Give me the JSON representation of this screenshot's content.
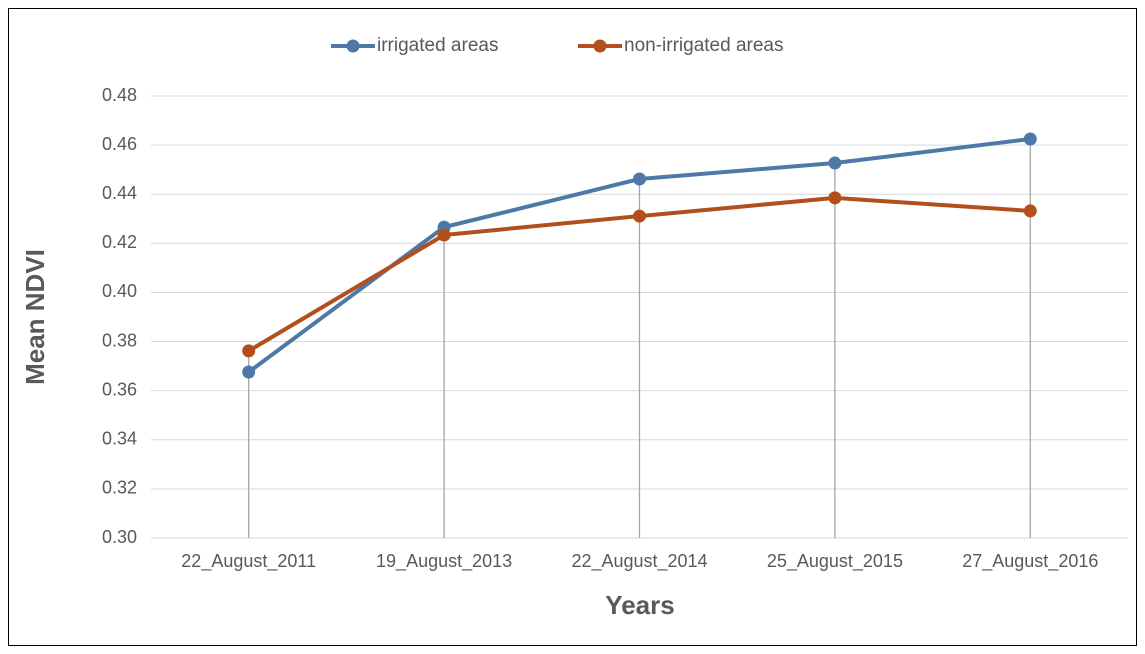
{
  "chart_data": {
    "type": "line",
    "x_label": "Years",
    "y_label": "Mean NDVI",
    "categories": [
      "22_August_2011",
      "19_August_2013",
      "22_August_2014",
      "25_August_2015",
      "27_August_2016"
    ],
    "series": [
      {
        "name": "irrigated areas",
        "color": "#4e79a7",
        "values": [
          0.3676,
          0.4266,
          0.4462,
          0.4527,
          0.4625
        ]
      },
      {
        "name": "non-irrigated areas",
        "color": "#b24f1d",
        "values": [
          0.3762,
          0.4234,
          0.4311,
          0.4385,
          0.4332
        ]
      }
    ],
    "ylim": [
      0.3,
      0.48
    ],
    "yticks": [
      {
        "value": 0.3,
        "label": "0.30"
      },
      {
        "value": 0.32,
        "label": "0.32"
      },
      {
        "value": 0.34,
        "label": "0.34"
      },
      {
        "value": 0.36,
        "label": "0.36"
      },
      {
        "value": 0.38,
        "label": "0.38"
      },
      {
        "value": 0.4,
        "label": "0.40"
      },
      {
        "value": 0.42,
        "label": "0.42"
      },
      {
        "value": 0.44,
        "label": "0.44"
      },
      {
        "value": 0.46,
        "label": "0.46"
      },
      {
        "value": 0.48,
        "label": "0.48"
      }
    ],
    "grid": true,
    "drop_lines": true,
    "legend": "top"
  }
}
